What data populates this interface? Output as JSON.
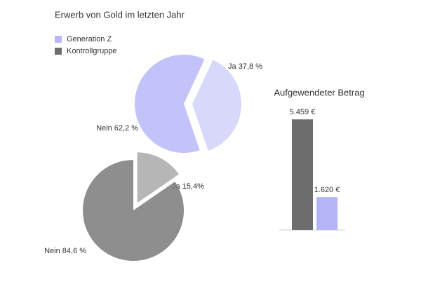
{
  "chart_data": [
    {
      "type": "pie",
      "title": "Erwerb von Gold im letzten Jahr",
      "name": "Generation Z",
      "color": "#b8b8f8",
      "categories": [
        "Ja",
        "Nein"
      ],
      "values": [
        37.8,
        62.2
      ],
      "value_labels": [
        "37,8 %",
        "62,2 %"
      ]
    },
    {
      "type": "pie",
      "name": "Kontrollgruppe",
      "color": "#7a7a7a",
      "categories": [
        "Ja",
        "Nein"
      ],
      "values": [
        15.4,
        84.6
      ],
      "value_labels": [
        "15,4%",
        "84,6 %"
      ]
    },
    {
      "type": "bar",
      "title": "Aufgewendeter Betrag",
      "categories": [
        null,
        null
      ],
      "values": [
        5459,
        1620
      ],
      "value_labels": [
        "5.459 €",
        "1.620 €"
      ],
      "colors": [
        "#6d6d6d",
        "#b3b5f7"
      ]
    }
  ]
}
